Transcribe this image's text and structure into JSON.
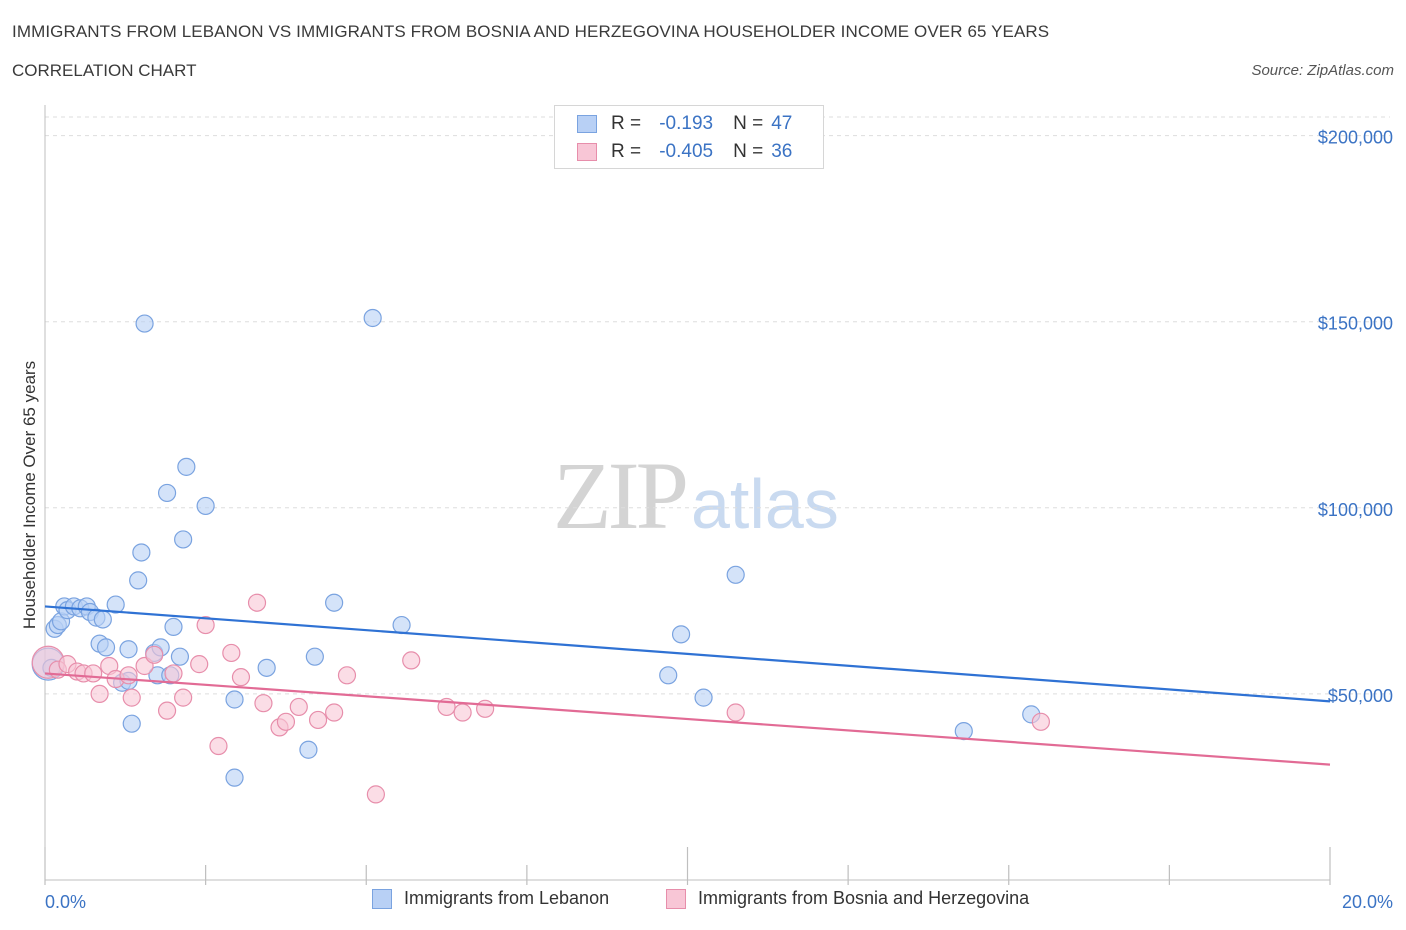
{
  "header": {
    "title": "IMMIGRANTS FROM LEBANON VS IMMIGRANTS FROM BOSNIA AND HERZEGOVINA HOUSEHOLDER INCOME OVER 65 YEARS",
    "subtitle": "CORRELATION CHART",
    "source": "Source: ZipAtlas.com"
  },
  "watermark": {
    "zip": "ZIP",
    "atlas": "atlas"
  },
  "legend": {
    "r_label": "R =",
    "n_label": "N =",
    "series": [
      {
        "r": "-0.193",
        "n": "47"
      },
      {
        "r": "-0.405",
        "n": "36"
      }
    ]
  },
  "bottom_legend": [
    "Immigrants from Lebanon",
    "Immigrants from Bosnia and Herzegovina"
  ],
  "colors": {
    "lebanon_fill": "#b8d0f5",
    "lebanon_stroke": "#7aa3e0",
    "lebanon_line": "#2f72d4",
    "bosnia_fill": "#f8c6d6",
    "bosnia_stroke": "#e78eab",
    "bosnia_line": "#e26b95",
    "tick_text": "#3b73c4",
    "grid": "#dddddd"
  },
  "chart_data": {
    "type": "scatter",
    "xlabel": "",
    "ylabel": "Householder Income Over 65 years",
    "xlim": [
      0,
      20
    ],
    "ylim": [
      0,
      205000
    ],
    "x_tick_labels": [
      "0.0%",
      "20.0%"
    ],
    "y_ticks": [
      50000,
      100000,
      150000,
      200000
    ],
    "y_tick_labels": [
      "$50,000",
      "$100,000",
      "$150,000",
      "$200,000"
    ],
    "grid": true,
    "series": [
      {
        "name": "Immigrants from Lebanon",
        "r": -0.193,
        "n": 47,
        "trend": {
          "x": [
            0,
            20
          ],
          "y": [
            73500,
            48000
          ]
        },
        "points": [
          [
            0.05,
            58000
          ],
          [
            0.1,
            57000
          ],
          [
            0.15,
            67500
          ],
          [
            0.2,
            68500
          ],
          [
            0.25,
            69500
          ],
          [
            0.3,
            73500
          ],
          [
            0.35,
            72500
          ],
          [
            0.45,
            73500
          ],
          [
            0.55,
            73000
          ],
          [
            0.65,
            73500
          ],
          [
            0.7,
            72000
          ],
          [
            0.8,
            70500
          ],
          [
            0.85,
            63500
          ],
          [
            0.9,
            70000
          ],
          [
            0.95,
            62500
          ],
          [
            1.1,
            74000
          ],
          [
            1.2,
            53000
          ],
          [
            1.3,
            53500
          ],
          [
            1.3,
            62000
          ],
          [
            1.35,
            42000
          ],
          [
            1.45,
            80500
          ],
          [
            1.5,
            88000
          ],
          [
            1.55,
            149500
          ],
          [
            1.7,
            61000
          ],
          [
            1.75,
            55000
          ],
          [
            1.8,
            62500
          ],
          [
            1.9,
            104000
          ],
          [
            1.95,
            55000
          ],
          [
            2.0,
            68000
          ],
          [
            2.1,
            60000
          ],
          [
            2.15,
            91500
          ],
          [
            2.2,
            111000
          ],
          [
            2.5,
            100500
          ],
          [
            2.95,
            48500
          ],
          [
            2.95,
            27500
          ],
          [
            3.45,
            57000
          ],
          [
            4.1,
            35000
          ],
          [
            4.2,
            60000
          ],
          [
            4.5,
            74500
          ],
          [
            5.1,
            151000
          ],
          [
            5.55,
            68500
          ],
          [
            9.7,
            55000
          ],
          [
            9.9,
            66000
          ],
          [
            10.25,
            49000
          ],
          [
            10.75,
            82000
          ],
          [
            14.3,
            40000
          ],
          [
            15.35,
            44500
          ]
        ]
      },
      {
        "name": "Immigrants from Bosnia and Herzegovina",
        "r": -0.405,
        "n": 36,
        "trend": {
          "x": [
            0,
            20
          ],
          "y": [
            55500,
            31000
          ]
        },
        "points": [
          [
            0.05,
            58500
          ],
          [
            0.2,
            56500
          ],
          [
            0.35,
            58000
          ],
          [
            0.5,
            56000
          ],
          [
            0.6,
            55500
          ],
          [
            0.75,
            55500
          ],
          [
            0.85,
            50000
          ],
          [
            1.0,
            57500
          ],
          [
            1.1,
            54000
          ],
          [
            1.3,
            55000
          ],
          [
            1.35,
            49000
          ],
          [
            1.55,
            57500
          ],
          [
            1.7,
            60500
          ],
          [
            1.9,
            45500
          ],
          [
            2.0,
            55500
          ],
          [
            2.15,
            49000
          ],
          [
            2.4,
            58000
          ],
          [
            2.5,
            68500
          ],
          [
            2.7,
            36000
          ],
          [
            2.9,
            61000
          ],
          [
            3.05,
            54500
          ],
          [
            3.3,
            74500
          ],
          [
            3.4,
            47500
          ],
          [
            3.65,
            41000
          ],
          [
            3.75,
            42500
          ],
          [
            3.95,
            46500
          ],
          [
            4.25,
            43000
          ],
          [
            4.5,
            45000
          ],
          [
            4.7,
            55000
          ],
          [
            5.15,
            23000
          ],
          [
            5.7,
            59000
          ],
          [
            6.25,
            46500
          ],
          [
            6.5,
            45000
          ],
          [
            6.85,
            46000
          ],
          [
            10.75,
            45000
          ],
          [
            15.5,
            42500
          ]
        ]
      }
    ]
  }
}
